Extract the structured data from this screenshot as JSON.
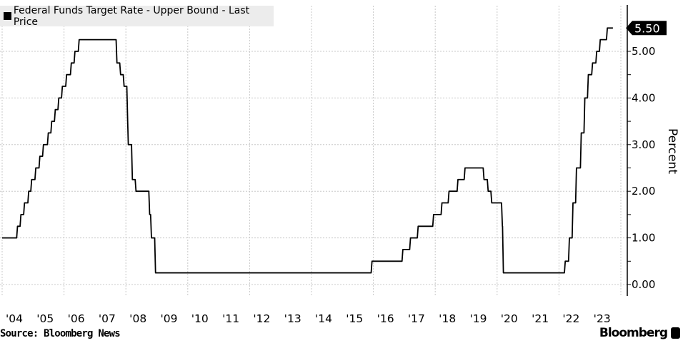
{
  "chart_data": {
    "type": "line",
    "title": "",
    "legend": {
      "entries": [
        "Federal Funds Target Rate - Upper Bound - Last Price"
      ],
      "placement": "top-left"
    },
    "ylabel": "Percent",
    "xlabel": "",
    "ylim": [
      -0.25,
      5.9
    ],
    "y_ticks": [
      "0.00",
      "1.00",
      "2.00",
      "3.00",
      "4.00",
      "5.00"
    ],
    "y_axis_side": "right",
    "x_tick_labels": [
      "'04",
      "'05",
      "'06",
      "'07",
      "'08",
      "'09",
      "'10",
      "'11",
      "'12",
      "'13",
      "'14",
      "'15",
      "'16",
      "'17",
      "'18",
      "'19",
      "'20",
      "'21",
      "'22",
      "'23"
    ],
    "grid": true,
    "last_price_label": "5.50",
    "series": [
      {
        "name": "Federal Funds Target Rate - Upper Bound - Last Price",
        "color": "#000000",
        "step_points": [
          [
            "2004-01-01",
            1.0
          ],
          [
            "2004-06-30",
            1.25
          ],
          [
            "2004-08-10",
            1.5
          ],
          [
            "2004-09-21",
            1.75
          ],
          [
            "2004-11-10",
            2.0
          ],
          [
            "2004-12-14",
            2.25
          ],
          [
            "2005-02-02",
            2.5
          ],
          [
            "2005-03-22",
            2.75
          ],
          [
            "2005-05-03",
            3.0
          ],
          [
            "2005-06-30",
            3.25
          ],
          [
            "2005-08-09",
            3.5
          ],
          [
            "2005-09-20",
            3.75
          ],
          [
            "2005-11-01",
            4.0
          ],
          [
            "2005-12-13",
            4.25
          ],
          [
            "2006-01-31",
            4.5
          ],
          [
            "2006-03-28",
            4.75
          ],
          [
            "2006-05-10",
            5.0
          ],
          [
            "2006-06-29",
            5.25
          ],
          [
            "2007-09-18",
            4.75
          ],
          [
            "2007-10-31",
            4.5
          ],
          [
            "2007-12-11",
            4.25
          ],
          [
            "2008-01-22",
            3.5
          ],
          [
            "2008-01-30",
            3.0
          ],
          [
            "2008-03-18",
            2.25
          ],
          [
            "2008-04-30",
            2.0
          ],
          [
            "2008-10-08",
            1.5
          ],
          [
            "2008-10-29",
            1.0
          ],
          [
            "2008-12-16",
            0.25
          ],
          [
            "2015-12-16",
            0.5
          ],
          [
            "2016-12-14",
            0.75
          ],
          [
            "2017-03-15",
            1.0
          ],
          [
            "2017-06-14",
            1.25
          ],
          [
            "2017-12-13",
            1.5
          ],
          [
            "2018-03-21",
            1.75
          ],
          [
            "2018-06-13",
            2.0
          ],
          [
            "2018-09-26",
            2.25
          ],
          [
            "2018-12-19",
            2.5
          ],
          [
            "2019-07-31",
            2.25
          ],
          [
            "2019-09-18",
            2.0
          ],
          [
            "2019-10-30",
            1.75
          ],
          [
            "2020-03-03",
            1.25
          ],
          [
            "2020-03-15",
            0.25
          ],
          [
            "2022-03-16",
            0.5
          ],
          [
            "2022-05-04",
            1.0
          ],
          [
            "2022-06-15",
            1.75
          ],
          [
            "2022-07-27",
            2.5
          ],
          [
            "2022-09-21",
            3.25
          ],
          [
            "2022-11-02",
            4.0
          ],
          [
            "2022-12-14",
            4.5
          ],
          [
            "2023-02-01",
            4.75
          ],
          [
            "2023-03-22",
            5.0
          ],
          [
            "2023-05-03",
            5.25
          ],
          [
            "2023-07-26",
            5.5
          ],
          [
            "2023-09-30",
            5.5
          ]
        ]
      }
    ]
  },
  "footer": {
    "source": "Source: Bloomberg News",
    "brand": "Bloomberg"
  }
}
